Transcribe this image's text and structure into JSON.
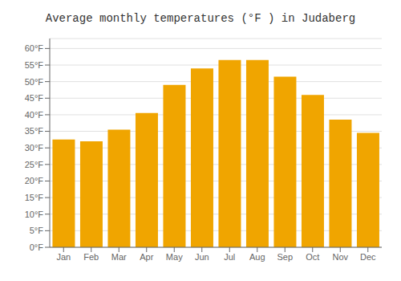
{
  "chart_data": {
    "type": "bar",
    "title": "Average monthly temperatures (°F ) in Judaberg",
    "categories": [
      "Jan",
      "Feb",
      "Mar",
      "Apr",
      "May",
      "Jun",
      "Jul",
      "Aug",
      "Sep",
      "Oct",
      "Nov",
      "Dec"
    ],
    "values": [
      32.5,
      32.0,
      35.5,
      40.5,
      49.0,
      54.0,
      56.5,
      56.5,
      51.5,
      46.0,
      38.5,
      34.5
    ],
    "color": "#F0A500",
    "ylim": [
      0,
      63
    ],
    "yticks": [
      {
        "value": 0,
        "label": "0°F"
      },
      {
        "value": 5,
        "label": "5°F"
      },
      {
        "value": 10,
        "label": "10°F"
      },
      {
        "value": 15,
        "label": "15°F"
      },
      {
        "value": 20,
        "label": "20°F"
      },
      {
        "value": 25,
        "label": "25°F"
      },
      {
        "value": 30,
        "label": "30°F"
      },
      {
        "value": 35,
        "label": "35°F"
      },
      {
        "value": 40,
        "label": "40°F"
      },
      {
        "value": 45,
        "label": "45°F"
      },
      {
        "value": 50,
        "label": "50°F"
      },
      {
        "value": 55,
        "label": "55°F"
      },
      {
        "value": 60,
        "label": "60°F"
      }
    ],
    "grid": true
  }
}
